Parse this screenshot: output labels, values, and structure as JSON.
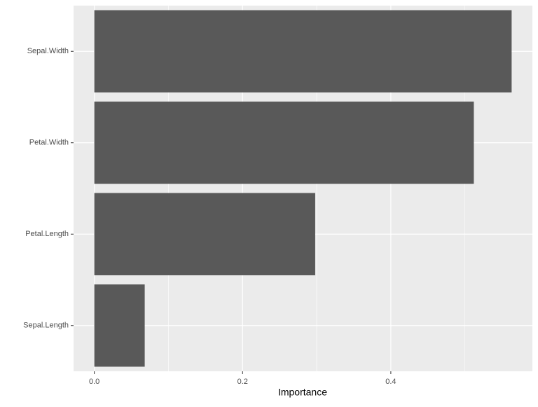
{
  "chart_data": {
    "type": "hbar",
    "x_label": "Importance",
    "categories": [
      "Sepal.Width",
      "Petal.Width",
      "Petal.Length",
      "Sepal.Length"
    ],
    "values": [
      0.563,
      0.512,
      0.298,
      0.068
    ],
    "color": "#595959",
    "xlim": [
      -0.028,
      0.591
    ],
    "xticks": [
      {
        "value": 0,
        "label": "0.0"
      },
      0.2,
      0.4
    ],
    "xminor": [
      0.1,
      0.3,
      0.5
    ],
    "grid": true
  }
}
